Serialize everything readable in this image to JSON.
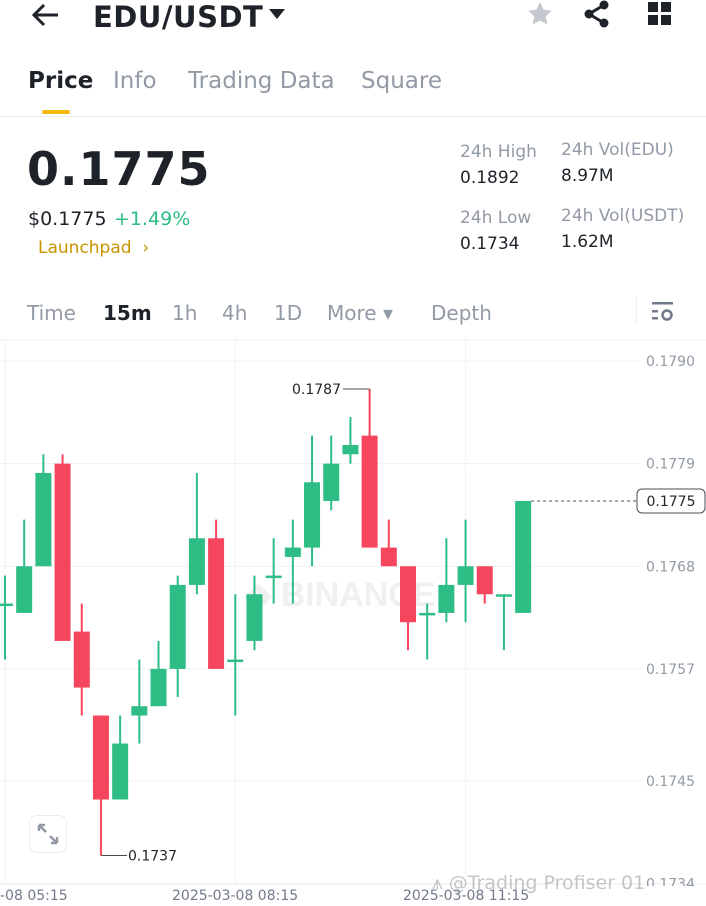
{
  "header": {
    "title": "EDU/USDT",
    "icons": [
      "back-arrow-icon",
      "caret-down-icon",
      "star-icon",
      "share-icon",
      "grid-icon"
    ]
  },
  "tabs": [
    {
      "label": "Price",
      "active": true
    },
    {
      "label": "Info"
    },
    {
      "label": "Trading Data"
    },
    {
      "label": "Square"
    }
  ],
  "ticker": {
    "price": "0.1775",
    "usd_price": "$0.1775",
    "change": "+1.49%",
    "tag": "Launchpad",
    "tag_arrow": "›"
  },
  "stats": {
    "high_label": "24h High",
    "high": "0.1892",
    "low_label": "24h Low",
    "low": "0.1734",
    "vol_base_label": "24h Vol(EDU)",
    "vol_base": "8.97M",
    "vol_quote_label": "24h Vol(USDT)",
    "vol_quote": "1.62M"
  },
  "timeframes": [
    {
      "label": "Time"
    },
    {
      "label": "15m",
      "active": true
    },
    {
      "label": "1h"
    },
    {
      "label": "4h"
    },
    {
      "label": "1D"
    },
    {
      "label": "More ▾"
    },
    {
      "label": "Depth"
    }
  ],
  "colors": {
    "up": "#2ebd85",
    "down": "#f6465d",
    "accent": "#f0b90b"
  },
  "watermarks": [
    "BINANCE",
    "@Trading Profiser 01"
  ],
  "chart_data": {
    "type": "candlestick",
    "interval": "15m",
    "y_ticks": [
      "0.1790",
      "0.1779",
      "0.1768",
      "0.1757",
      "0.1745",
      "0.1734"
    ],
    "ylim": [
      0.1734,
      0.179
    ],
    "x_ticks": [
      "-08 05:15",
      "2025-03-08 08:15",
      "2025-03-08 11:15"
    ],
    "current_price": "0.1775",
    "high_marker": "0.1787",
    "low_marker": "0.1737",
    "candles": [
      [
        0.1764,
        0.1767,
        0.1758,
        0.1764
      ],
      [
        0.1763,
        0.1773,
        0.1763,
        0.1768
      ],
      [
        0.1768,
        0.178,
        0.1768,
        0.1778
      ],
      [
        0.1779,
        0.178,
        0.176,
        0.176
      ],
      [
        0.1761,
        0.1764,
        0.1752,
        0.1755
      ],
      [
        0.1752,
        0.1752,
        0.1737,
        0.1743
      ],
      [
        0.1743,
        0.1752,
        0.1743,
        0.1749
      ],
      [
        0.1752,
        0.1758,
        0.1749,
        0.1753
      ],
      [
        0.1753,
        0.176,
        0.1753,
        0.1757
      ],
      [
        0.1757,
        0.1767,
        0.1754,
        0.1766
      ],
      [
        0.1766,
        0.1778,
        0.1765,
        0.1771
      ],
      [
        0.1771,
        0.1773,
        0.1757,
        0.1757
      ],
      [
        0.1758,
        0.1765,
        0.1752,
        0.1758
      ],
      [
        0.176,
        0.1767,
        0.1759,
        0.1765
      ],
      [
        0.1767,
        0.1771,
        0.1764,
        0.1767
      ],
      [
        0.1769,
        0.1773,
        0.1764,
        0.177
      ],
      [
        0.177,
        0.1782,
        0.1768,
        0.1777
      ],
      [
        0.1775,
        0.1782,
        0.1774,
        0.1779
      ],
      [
        0.178,
        0.1784,
        0.1779,
        0.1781
      ],
      [
        0.1782,
        0.1787,
        0.177,
        0.177
      ],
      [
        0.177,
        0.1773,
        0.1768,
        0.1768
      ],
      [
        0.1768,
        0.1768,
        0.1759,
        0.1762
      ],
      [
        0.1763,
        0.1764,
        0.1758,
        0.1763
      ],
      [
        0.1763,
        0.1771,
        0.1762,
        0.1766
      ],
      [
        0.1766,
        0.1773,
        0.1762,
        0.1768
      ],
      [
        0.1768,
        0.1768,
        0.1764,
        0.1765
      ],
      [
        0.1765,
        0.1765,
        0.1759,
        0.1765
      ],
      [
        0.1763,
        0.1775,
        0.1763,
        0.1775
      ]
    ],
    "candle_fields": [
      "open",
      "high",
      "low",
      "close"
    ]
  }
}
